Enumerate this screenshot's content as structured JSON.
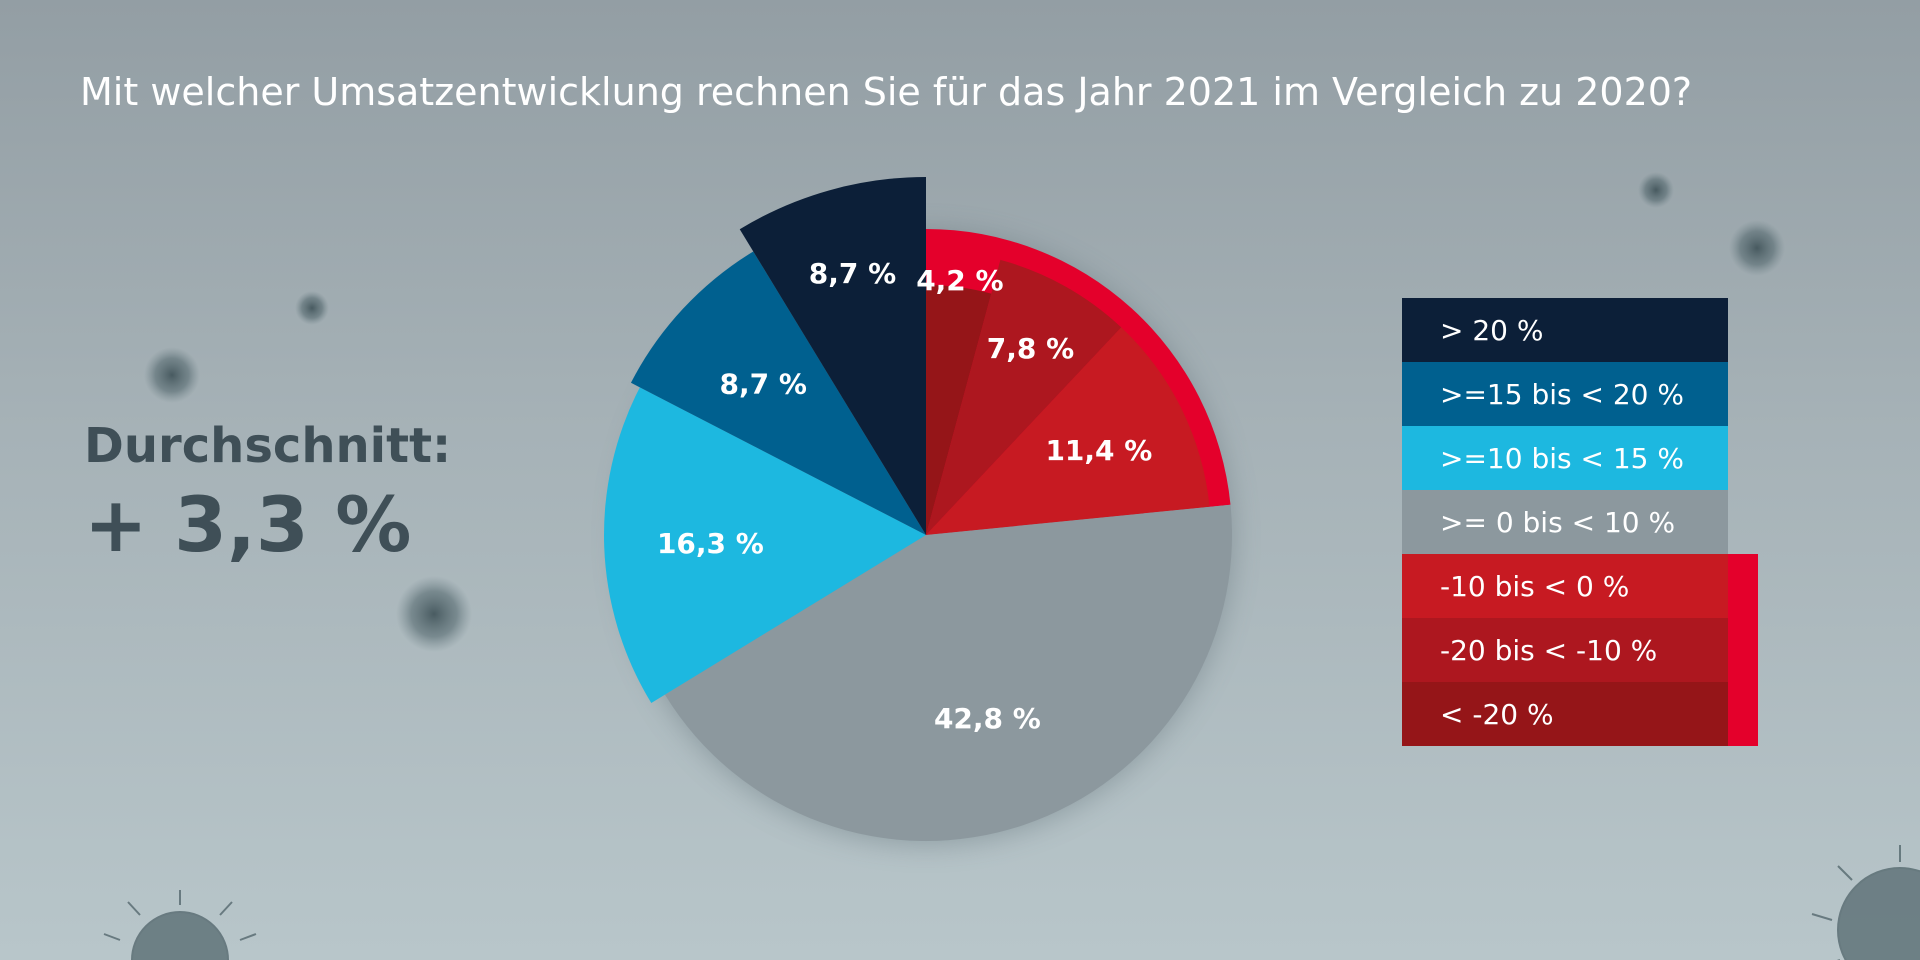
{
  "title": "Mit welcher Umsatzentwicklung rechnen Sie für das Jahr 2021 im Vergleich zu 2020?",
  "average": {
    "label": "Durchschnitt:",
    "value": "+ 3,3 %"
  },
  "colors": {
    "negative_accent": "#e4002b"
  },
  "chart_data": {
    "type": "pie",
    "title": "Mit welcher Umsatzentwicklung rechnen Sie für das Jahr 2021 im Vergleich zu 2020?",
    "slices": [
      {
        "category": "< -20 %",
        "value": 4.2,
        "label": "4,2 %",
        "color": "#951518"
      },
      {
        "category": "-20 bis < -10 %",
        "value": 7.8,
        "label": "7,8 %",
        "color": "#ad171f"
      },
      {
        "category": "-10 bis < 0 %",
        "value": 11.4,
        "label": "11,4 %",
        "color": "#c71a22"
      },
      {
        "category": ">= 0 bis < 10 %",
        "value": 42.8,
        "label": "42,8 %",
        "color": "#8c989e"
      },
      {
        "category": ">=10 bis < 15 %",
        "value": 16.3,
        "label": "16,3 %",
        "color": "#1db8e0"
      },
      {
        "category": ">=15 bis < 20 %",
        "value": 8.7,
        "label": "8,7 %",
        "color": "#00608f"
      },
      {
        "category": "> 20 %",
        "value": 8.7,
        "label": "8,7 %",
        "color": "#0c1f38"
      }
    ],
    "legend": {
      "position": "right",
      "entries": [
        {
          "label": "> 20 %",
          "color": "#0c1f38"
        },
        {
          "label": ">=15 bis < 20 %",
          "color": "#00608f"
        },
        {
          "label": ">=10 bis < 15 %",
          "color": "#1db8e0"
        },
        {
          "label": ">= 0 bis < 10 %",
          "color": "#8c989e"
        },
        {
          "label": "-10 bis < 0 %",
          "color": "#c71a22"
        },
        {
          "label": "-20 bis < -10 %",
          "color": "#ad171f"
        },
        {
          "label": "< -20 %",
          "color": "#951518"
        }
      ]
    }
  }
}
